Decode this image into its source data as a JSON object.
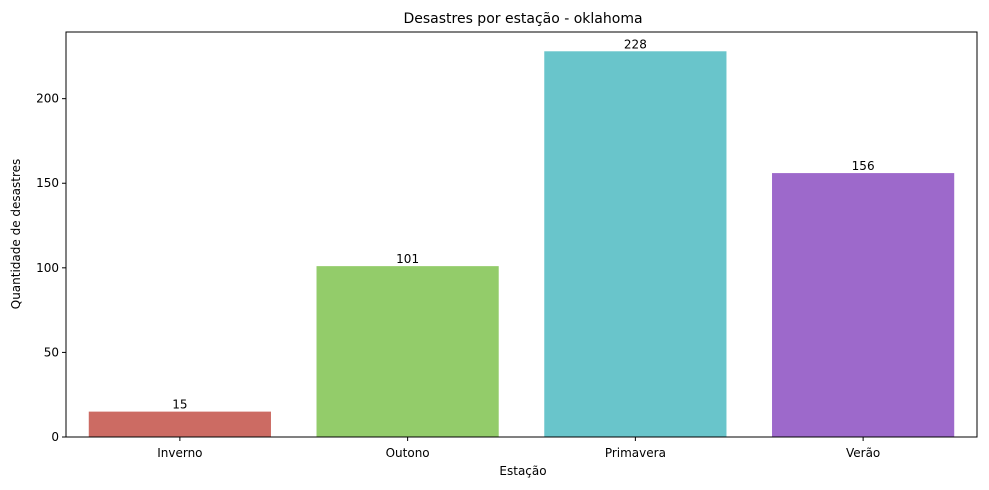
{
  "chart_data": {
    "type": "bar",
    "title": "Desastres por estação - oklahoma",
    "xlabel": "Estação",
    "ylabel": "Quantidade de desastres",
    "categories": [
      "Inverno",
      "Outono",
      "Primavera",
      "Verão"
    ],
    "values": [
      15,
      101,
      228,
      156
    ],
    "data_labels": [
      "15",
      "101",
      "228",
      "156"
    ],
    "colors": [
      "#cc6b63",
      "#93cc6a",
      "#69c5cb",
      "#9d69cb"
    ],
    "ylim": [
      0,
      239.4
    ],
    "yticks": [
      0,
      50,
      100,
      150,
      200
    ],
    "ytick_labels": [
      "0",
      "50",
      "100",
      "150",
      "200"
    ],
    "grid": false,
    "legend": "none"
  }
}
